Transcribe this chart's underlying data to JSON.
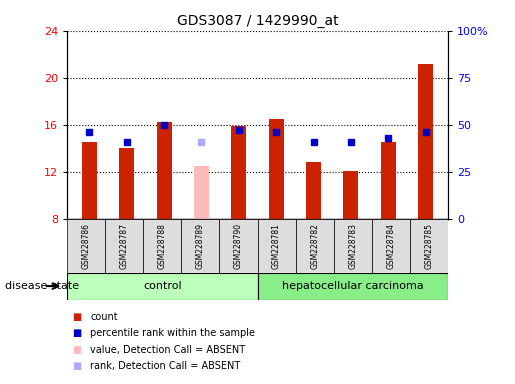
{
  "title": "GDS3087 / 1429990_at",
  "samples": [
    "GSM228786",
    "GSM228787",
    "GSM228788",
    "GSM228789",
    "GSM228790",
    "GSM228781",
    "GSM228782",
    "GSM228783",
    "GSM228784",
    "GSM228785"
  ],
  "count_values": [
    14.5,
    14.0,
    16.2,
    null,
    15.9,
    16.5,
    12.8,
    12.1,
    14.5,
    21.2
  ],
  "count_absent": [
    null,
    null,
    null,
    12.5,
    null,
    null,
    null,
    null,
    null,
    null
  ],
  "rank_values": [
    46.0,
    41.0,
    50.0,
    null,
    47.0,
    46.0,
    41.0,
    41.0,
    43.0,
    46.0
  ],
  "rank_absent": [
    null,
    null,
    null,
    41.0,
    null,
    null,
    null,
    null,
    null,
    null
  ],
  "is_absent": [
    false,
    false,
    false,
    true,
    false,
    false,
    false,
    false,
    false,
    false
  ],
  "ylim_left": [
    8,
    24
  ],
  "ylim_right": [
    0,
    100
  ],
  "yticks_left": [
    8,
    12,
    16,
    20,
    24
  ],
  "ytick_labels_right": [
    "0",
    "25",
    "50",
    "75",
    "100%"
  ],
  "bar_color_present": "#cc2200",
  "bar_color_absent": "#ffbbbb",
  "rank_color_present": "#0000cc",
  "rank_color_absent": "#aaaaff",
  "control_color": "#bbffbb",
  "cancer_color": "#88ee88",
  "legend_items": [
    {
      "label": "count",
      "color": "#cc2200"
    },
    {
      "label": "percentile rank within the sample",
      "color": "#0000cc"
    },
    {
      "label": "value, Detection Call = ABSENT",
      "color": "#ffbbbb"
    },
    {
      "label": "rank, Detection Call = ABSENT",
      "color": "#aaaaff"
    }
  ],
  "disease_state_label": "disease state",
  "bar_width": 0.4,
  "rank_marker_size": 5
}
